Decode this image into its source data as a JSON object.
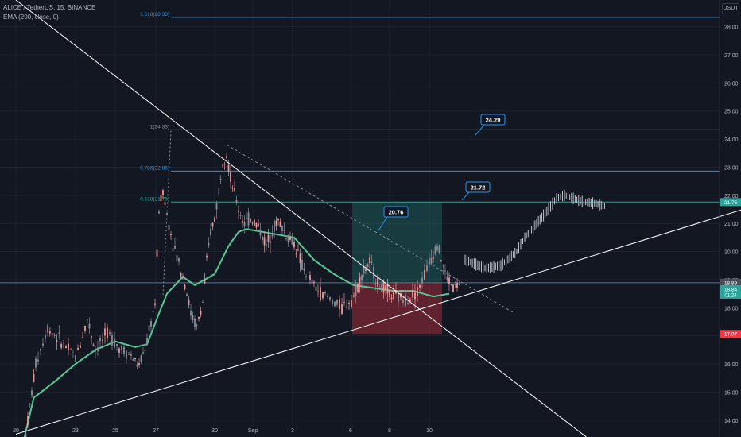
{
  "header": {
    "symbol_line": "ALICE / TetherUS, 15, BINANCE",
    "indicator_line": "EMA (200, close, 0)"
  },
  "price_unit": "USDT",
  "colors": {
    "background": "#131722",
    "grid": "#1e222d",
    "text": "#b2b5be",
    "fib_blue": "#2196f3",
    "fib_teal": "#26a69a",
    "ema": "#55c795",
    "candle_up": "#ef9a9a",
    "candle_down": "#8a8f9a",
    "profit_zone": "#26a69a",
    "loss_zone": "#f23645",
    "projection": "#c0c4cc"
  },
  "chart_data": {
    "type": "candlestick",
    "x_ticks": [
      "20",
      "23",
      "25",
      "27",
      "30",
      "Sep",
      "3",
      "6",
      "8",
      "10"
    ],
    "y_ticks": [
      "14.00",
      "15.00",
      "16.00",
      "17.00",
      "18.00",
      "19.00",
      "20.00",
      "21.00",
      "22.00",
      "23.00",
      "24.00",
      "25.00",
      "26.00",
      "27.00",
      "28.00"
    ],
    "y_range": [
      13.4,
      28.95
    ],
    "fib_levels": [
      {
        "label": "1.618(28.33)",
        "price": 28.33,
        "color": "#2196f3"
      },
      {
        "label": "1(24.33)",
        "price": 24.33,
        "color": "#8a8f9a"
      },
      {
        "label": "0.786(22.86)",
        "price": 22.86,
        "color": "#2196f3"
      },
      {
        "label": "0.618(21.76)",
        "price": 21.76,
        "color": "#26a69a"
      }
    ],
    "callouts": [
      {
        "label": "24.29",
        "price": 24.29
      },
      {
        "label": "21.72",
        "price": 21.72
      },
      {
        "label": "20.76",
        "price": 20.76
      }
    ],
    "axis_badges": [
      {
        "label": "21.76",
        "price": 21.76,
        "color": "#26a69a"
      },
      {
        "label": "18.89",
        "price": 18.89,
        "color": "#4a4e59"
      },
      {
        "label": "18.84",
        "sub": "01:24",
        "price": 18.66,
        "color": "#26a69a"
      },
      {
        "label": "17.07",
        "price": 17.07,
        "color": "#f23645"
      }
    ],
    "position": {
      "entry": 18.89,
      "target": 21.76,
      "stop": 17.07
    },
    "ema_200": [
      [
        0.2,
        13.3
      ],
      [
        0.45,
        14.8
      ],
      [
        1.0,
        15.4
      ],
      [
        1.5,
        16.0
      ],
      [
        2.0,
        16.5
      ],
      [
        2.5,
        16.8
      ],
      [
        3.0,
        16.6
      ],
      [
        3.3,
        16.7
      ],
      [
        3.6,
        17.8
      ],
      [
        3.8,
        18.5
      ],
      [
        4.2,
        19.1
      ],
      [
        4.5,
        18.8
      ],
      [
        5.0,
        19.2
      ],
      [
        5.35,
        20.2
      ],
      [
        5.6,
        20.7
      ],
      [
        5.8,
        20.8
      ],
      [
        6.2,
        20.7
      ],
      [
        6.6,
        20.6
      ],
      [
        7.0,
        20.5
      ],
      [
        7.5,
        19.7
      ],
      [
        8.0,
        19.2
      ],
      [
        8.5,
        18.8
      ],
      [
        9.0,
        18.7
      ],
      [
        9.5,
        18.6
      ],
      [
        10.0,
        18.6
      ],
      [
        10.5,
        18.4
      ],
      [
        10.9,
        18.5
      ]
    ],
    "price_path": [
      [
        0.25,
        13.5
      ],
      [
        0.5,
        16.0
      ],
      [
        0.8,
        17.3
      ],
      [
        1.2,
        16.7
      ],
      [
        1.5,
        16.2
      ],
      [
        1.8,
        17.6
      ],
      [
        2.0,
        16.5
      ],
      [
        2.3,
        17.1
      ],
      [
        2.6,
        16.6
      ],
      [
        2.9,
        16.3
      ],
      [
        3.1,
        15.9
      ],
      [
        3.3,
        16.8
      ],
      [
        3.5,
        18.2
      ],
      [
        3.6,
        21.5
      ],
      [
        3.7,
        22.2
      ],
      [
        3.8,
        21.3
      ],
      [
        3.95,
        20.3
      ],
      [
        4.1,
        19.6
      ],
      [
        4.25,
        18.9
      ],
      [
        4.4,
        17.8
      ],
      [
        4.55,
        17.3
      ],
      [
        4.7,
        18.2
      ],
      [
        4.8,
        19.6
      ],
      [
        4.9,
        20.7
      ],
      [
        5.0,
        21.2
      ],
      [
        5.1,
        22.1
      ],
      [
        5.2,
        23.3
      ],
      [
        5.3,
        23.5
      ],
      [
        5.4,
        22.6
      ],
      [
        5.6,
        21.5
      ],
      [
        5.75,
        21.0
      ],
      [
        5.9,
        21.2
      ],
      [
        6.1,
        20.9
      ],
      [
        6.3,
        20.2
      ],
      [
        6.45,
        20.8
      ],
      [
        6.6,
        21.1
      ],
      [
        6.8,
        20.6
      ],
      [
        7.0,
        20.3
      ],
      [
        7.2,
        19.5
      ],
      [
        7.4,
        19.0
      ],
      [
        7.6,
        18.6
      ],
      [
        7.9,
        18.3
      ],
      [
        8.2,
        18.0
      ],
      [
        8.5,
        18.4
      ],
      [
        8.7,
        19.2
      ],
      [
        8.9,
        19.6
      ],
      [
        9.1,
        18.9
      ],
      [
        9.3,
        18.6
      ],
      [
        9.5,
        18.4
      ],
      [
        9.8,
        18.3
      ],
      [
        10.1,
        18.6
      ],
      [
        10.4,
        19.6
      ],
      [
        10.6,
        20.3
      ],
      [
        10.8,
        19.2
      ],
      [
        11.0,
        18.7
      ],
      [
        11.2,
        18.9
      ]
    ],
    "projection_path": [
      [
        11.3,
        19.7
      ],
      [
        11.8,
        19.4
      ],
      [
        12.2,
        19.5
      ],
      [
        12.6,
        20.0
      ],
      [
        12.8,
        20.5
      ],
      [
        13.1,
        21.0
      ],
      [
        13.4,
        21.5
      ],
      [
        13.6,
        21.9
      ],
      [
        13.8,
        22.0
      ],
      [
        14.2,
        21.8
      ],
      [
        14.6,
        21.7
      ],
      [
        14.85,
        21.6
      ]
    ],
    "trendlines": [
      {
        "p1": [
          0.0,
          13.5
        ],
        "p2": [
          24.0,
          24.0
        ],
        "color": "#ffffff"
      },
      {
        "p1": [
          0.0,
          28.95
        ],
        "p2": [
          14.35,
          13.4
        ],
        "color": "#ffffff"
      },
      {
        "p1": [
          5.3,
          23.8
        ],
        "p2": [
          12.55,
          17.8
        ],
        "color": "#8a8f9a",
        "dashed": true
      }
    ]
  }
}
